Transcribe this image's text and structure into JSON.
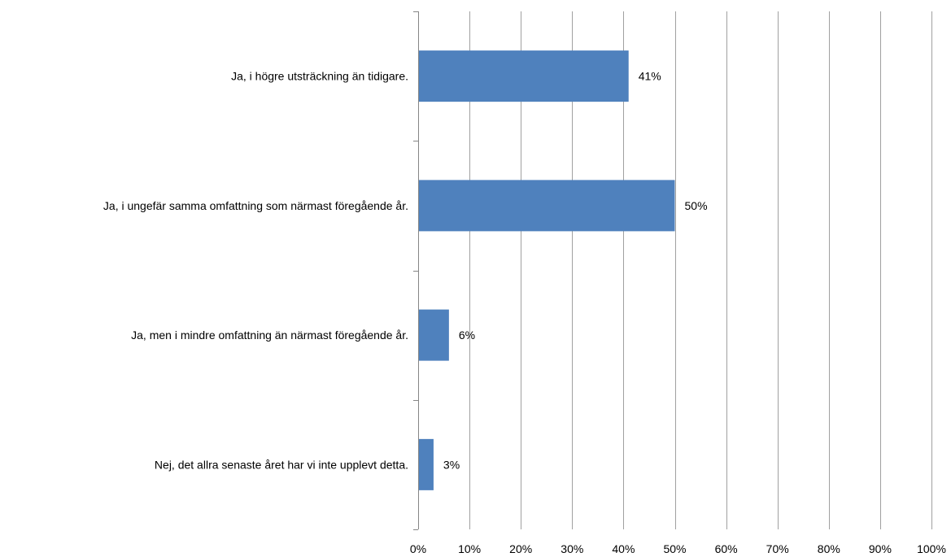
{
  "chart_data": {
    "type": "bar",
    "orientation": "horizontal",
    "categories": [
      "Ja, i högre utsträckning än tidigare.",
      "Ja, i ungefär samma omfattning som närmast föregående år.",
      "Ja, men i mindre omfattning än närmast föregående år.",
      "Nej, det allra senaste året har vi inte upplevt detta."
    ],
    "values": [
      41,
      50,
      6,
      3
    ],
    "data_labels": [
      "41%",
      "50%",
      "6%",
      "3%"
    ],
    "xlim": [
      0,
      100
    ],
    "x_ticks": [
      0,
      10,
      20,
      30,
      40,
      50,
      60,
      70,
      80,
      90,
      100
    ],
    "x_tick_labels": [
      "0%",
      "10%",
      "20%",
      "30%",
      "40%",
      "50%",
      "60%",
      "70%",
      "80%",
      "90%",
      "100%"
    ],
    "title": "",
    "xlabel": "",
    "ylabel": "",
    "grid": "vertical",
    "legend": "none",
    "colors": {
      "bar": "#4F81BD",
      "grid": "#A0A0A0",
      "axis": "#868686"
    }
  }
}
